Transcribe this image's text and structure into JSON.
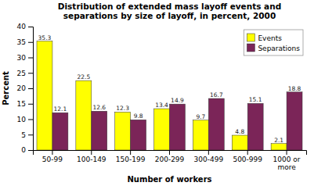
{
  "chart_data": {
    "type": "bar",
    "title": "Distribution of extended mass layoff events and\nseparations by size of layoff, in percent, 2000",
    "categories": [
      "50-99",
      "100-149",
      "150-199",
      "200-299",
      "300-499",
      "500-999",
      "1000 or\nmore"
    ],
    "series": [
      {
        "name": "Events",
        "color": "#FFFF00",
        "values": [
          35.3,
          22.5,
          12.3,
          13.4,
          9.7,
          4.8,
          2.1
        ]
      },
      {
        "name": "Separations",
        "color": "#7B2558",
        "values": [
          12.1,
          12.6,
          9.8,
          14.9,
          16.7,
          15.1,
          18.8
        ]
      }
    ],
    "xlabel": "Number of workers",
    "ylabel": "Percent",
    "ylim": [
      0,
      40
    ],
    "yticks": [
      0,
      5,
      10,
      15,
      20,
      25,
      30,
      35,
      40
    ],
    "data_labels": true,
    "legend": "upper right",
    "grid": false
  }
}
